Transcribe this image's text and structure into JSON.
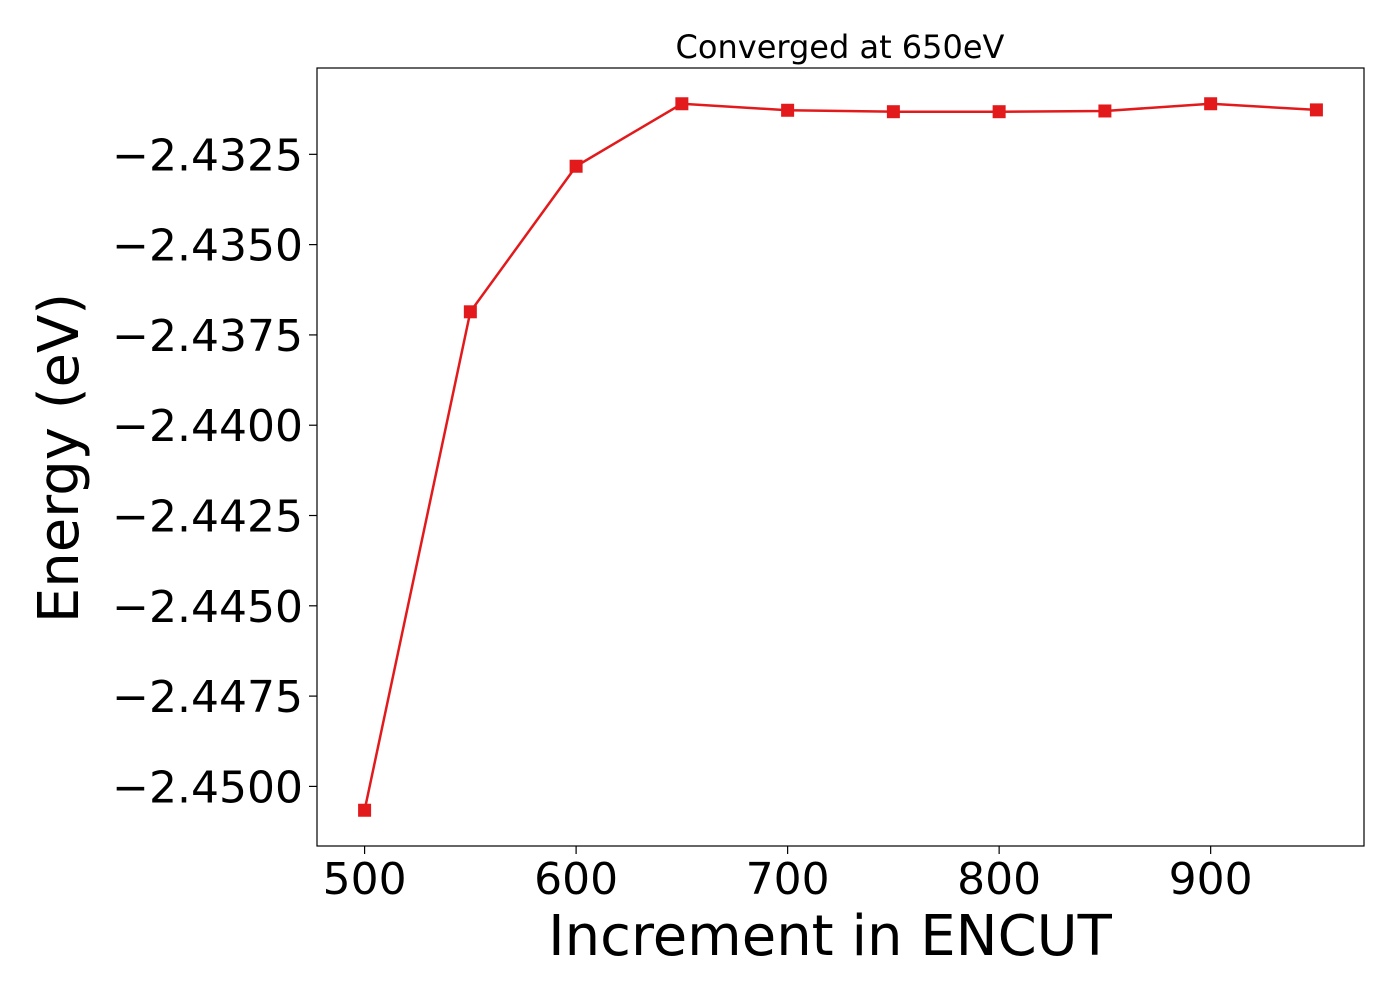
{
  "chart_data": {
    "type": "line",
    "title": "Converged at 650eV",
    "xlabel": "Increment in ENCUT",
    "ylabel": "Energy (eV)",
    "x": [
      500,
      550,
      600,
      650,
      700,
      750,
      800,
      850,
      900,
      950
    ],
    "series": [
      {
        "values": [
          -2.45066,
          -2.43686,
          -2.43283,
          -2.4311,
          -2.43128,
          -2.43132,
          -2.43132,
          -2.4313,
          -2.4311,
          -2.43127
        ],
        "color": "#e31a1c",
        "marker": "square"
      }
    ],
    "xlim": [
      477.5,
      972.5
    ],
    "ylim": [
      -2.45165,
      -2.43011
    ],
    "xticks": [
      500,
      600,
      700,
      800,
      900
    ],
    "yticks": [
      -2.4325,
      -2.435,
      -2.4375,
      -2.44,
      -2.4425,
      -2.445,
      -2.4475,
      -2.45
    ],
    "xtick_labels": [
      "500",
      "600",
      "700",
      "800",
      "900"
    ],
    "ytick_labels": [
      "−2.4325",
      "−2.4350",
      "−2.4375",
      "−2.4400",
      "−2.4425",
      "−2.4450",
      "−2.4475",
      "−2.4500"
    ],
    "grid": false,
    "legend": "none"
  }
}
